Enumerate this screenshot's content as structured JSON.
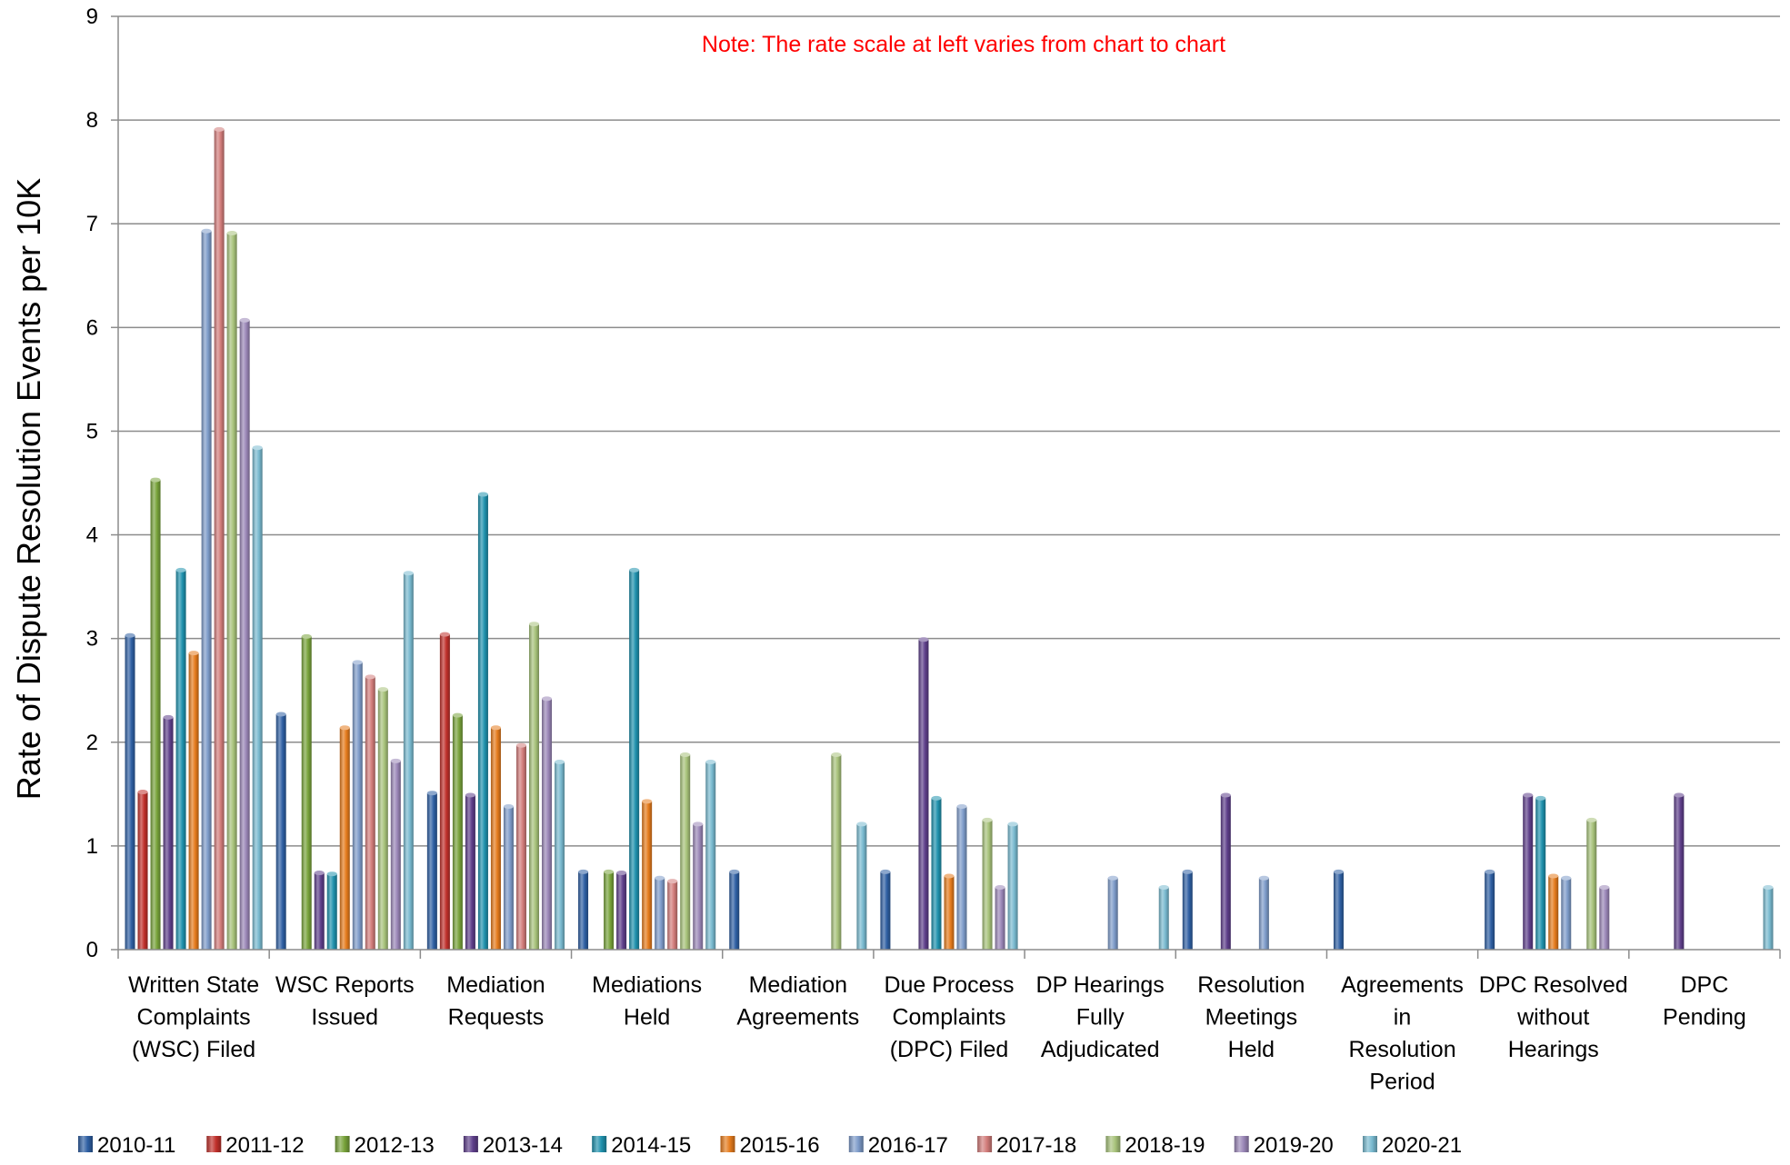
{
  "chart_data": {
    "type": "bar",
    "ylabel": "Rate of Dispute Resolution Events per 10K",
    "ylim": [
      0,
      9
    ],
    "yticks": [
      "0",
      "1",
      "2",
      "3",
      "4",
      "5",
      "6",
      "7",
      "8",
      "9"
    ],
    "grid": true,
    "legend_position": "bottom",
    "annotation": "Note:  The rate scale at left varies from chart to chart",
    "annotation_color": "#ff0000",
    "categories": [
      [
        "Written State",
        "Complaints",
        "(WSC) Filed"
      ],
      [
        "WSC Reports",
        "Issued"
      ],
      [
        "Mediation",
        "Requests"
      ],
      [
        "Mediations",
        "Held"
      ],
      [
        "Mediation",
        "Agreements"
      ],
      [
        "Due Process",
        "Complaints",
        "(DPC) Filed"
      ],
      [
        "DP Hearings",
        "Fully",
        "Adjudicated"
      ],
      [
        "Resolution",
        "Meetings",
        "Held"
      ],
      [
        "Agreements",
        "in",
        "Resolution",
        "Period"
      ],
      [
        "DPC Resolved",
        "without",
        "Hearings"
      ],
      [
        "DPC",
        "Pending"
      ]
    ],
    "series": [
      {
        "name": "2010-11",
        "color": "#2e5fa3",
        "values": [
          3.03,
          2.27,
          1.51,
          0.75,
          0.75,
          0.75,
          0,
          0.75,
          0.75,
          0.75,
          0
        ]
      },
      {
        "name": "2011-12",
        "color": "#c0302b",
        "values": [
          1.52,
          0,
          3.04,
          0,
          0,
          0,
          0,
          0,
          0,
          0,
          0
        ]
      },
      {
        "name": "2012-13",
        "color": "#78a33a",
        "values": [
          4.53,
          3.02,
          2.26,
          0.75,
          0,
          0,
          0,
          0,
          0,
          0,
          0
        ]
      },
      {
        "name": "2013-14",
        "color": "#5e3f8a",
        "values": [
          2.24,
          0.74,
          1.49,
          0.74,
          0,
          2.99,
          0,
          1.49,
          0,
          1.49,
          1.49
        ]
      },
      {
        "name": "2014-15",
        "color": "#1f91ad",
        "values": [
          3.66,
          0.73,
          4.39,
          3.66,
          0,
          1.46,
          0,
          0,
          0,
          1.46,
          0
        ]
      },
      {
        "name": "2015-16",
        "color": "#e57b1c",
        "values": [
          2.86,
          2.14,
          2.14,
          1.43,
          0,
          0.71,
          0,
          0,
          0,
          0.71,
          0
        ]
      },
      {
        "name": "2016-17",
        "color": "#7d9bc9",
        "values": [
          6.93,
          2.77,
          1.38,
          0.69,
          0,
          1.38,
          0.69,
          0.69,
          0,
          0.69,
          0
        ]
      },
      {
        "name": "2017-18",
        "color": "#d27c7a",
        "values": [
          7.91,
          2.63,
          1.97,
          0.66,
          0,
          0,
          0,
          0,
          0,
          0,
          0
        ]
      },
      {
        "name": "2018-19",
        "color": "#a7c27a",
        "values": [
          6.91,
          2.51,
          3.14,
          1.88,
          1.88,
          1.25,
          0,
          0,
          0,
          1.25,
          0
        ]
      },
      {
        "name": "2019-20",
        "color": "#9a86b7",
        "values": [
          6.07,
          1.82,
          2.42,
          1.21,
          0,
          0.6,
          0,
          0,
          0,
          0.6,
          0
        ]
      },
      {
        "name": "2020-21",
        "color": "#78b9cf",
        "values": [
          4.84,
          3.63,
          1.81,
          1.81,
          1.21,
          1.21,
          0.6,
          0,
          0,
          0,
          0.6
        ]
      }
    ]
  }
}
